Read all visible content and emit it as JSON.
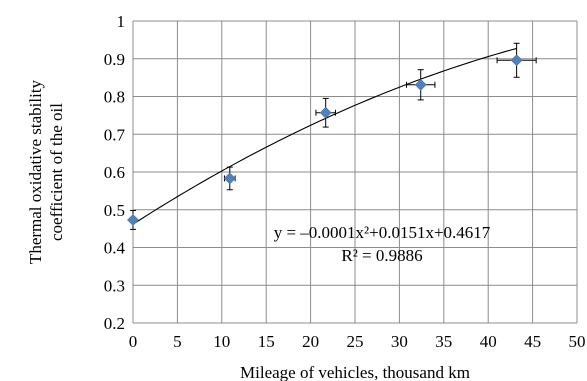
{
  "chart_data": {
    "type": "scatter",
    "xlabel": "Mileage of vehicles, thousand km",
    "ylabel_lines": [
      "Thermal oxidative stability",
      "coefficient of the oil"
    ],
    "xlim": [
      0,
      50
    ],
    "ylim": [
      0.2,
      1.0
    ],
    "x_ticks": [
      0,
      5,
      10,
      15,
      20,
      25,
      30,
      35,
      40,
      45,
      50
    ],
    "y_ticks": [
      0.2,
      0.3,
      0.4,
      0.5,
      0.6,
      0.7,
      0.8,
      0.9,
      1.0
    ],
    "y_tick_labels": [
      "0.2",
      "0.3",
      "0.4",
      "0.5",
      "0.6",
      "0.7",
      "0.8",
      "0.9",
      "1"
    ],
    "grid": true,
    "marker_color": "#4f81bd",
    "series": [
      {
        "x": [
          0,
          10.9,
          21.7,
          32.4,
          43.2
        ],
        "y": [
          0.473,
          0.583,
          0.757,
          0.831,
          0.896
        ],
        "x_err": [
          0,
          0.6,
          1.1,
          1.6,
          2.2
        ],
        "y_err": [
          0.025,
          0.03,
          0.038,
          0.04,
          0.045
        ]
      }
    ],
    "trendline": {
      "type": "polynomial",
      "coefficients": [
        0.4617,
        0.0151,
        -0.0001
      ],
      "x_range": [
        0,
        43.2
      ],
      "equation": "y = –0.0001x²+0.0151x+0.4617",
      "r_squared": "R² = 0.9886"
    }
  }
}
